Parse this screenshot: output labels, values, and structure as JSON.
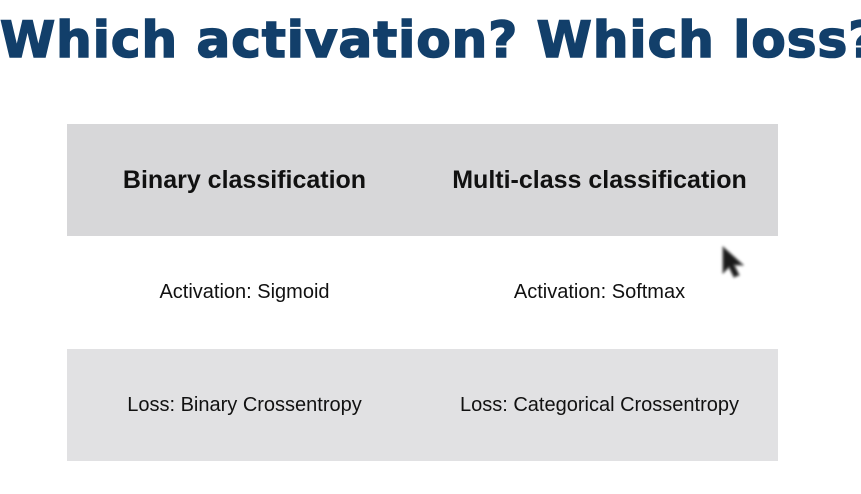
{
  "slide": {
    "title": "Which activation? Which loss?"
  },
  "table": {
    "columns": [
      "Binary classification",
      "Multi-class classification"
    ],
    "rows": [
      {
        "label": "activation",
        "cells": [
          "Activation: Sigmoid",
          "Activation: Softmax"
        ]
      },
      {
        "label": "loss",
        "cells": [
          "Loss: Binary Crossentropy",
          "Loss: Categorical Crossentropy"
        ]
      }
    ]
  },
  "colors": {
    "title": "#123f6a",
    "header_bg": "#d7d7d9",
    "loss_row_bg": "#e1e1e3",
    "text": "#111111"
  },
  "icons": {
    "cursor": "pointer-cursor-icon"
  }
}
